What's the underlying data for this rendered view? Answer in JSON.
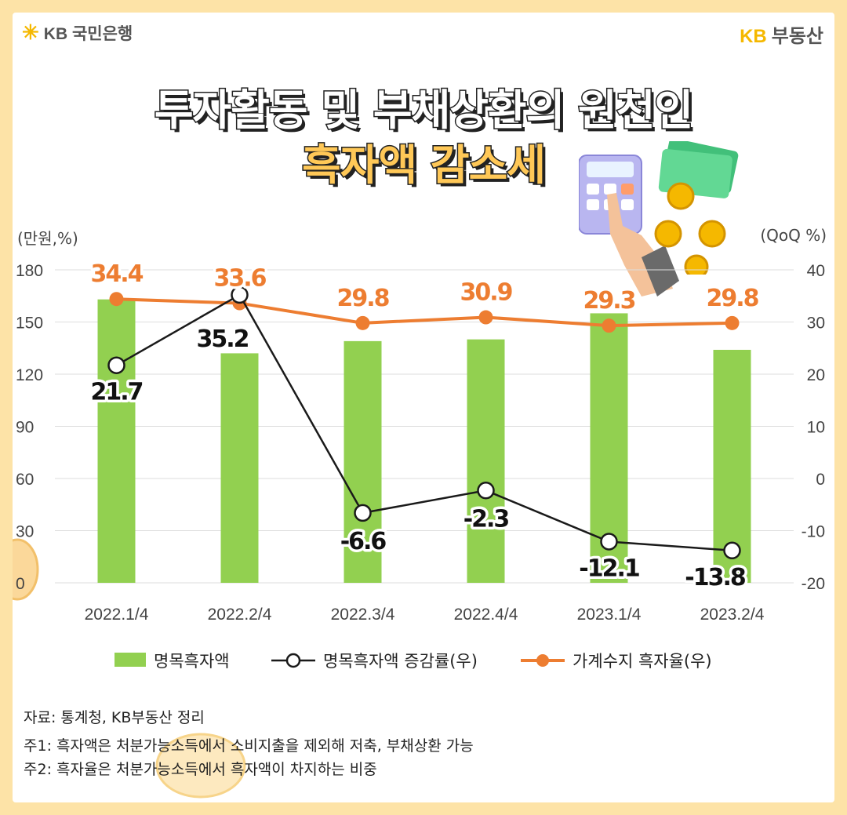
{
  "header": {
    "left_brand": "KB 국민은행",
    "right_brand_kb": "KB",
    "right_brand_name": "부동산"
  },
  "title": {
    "line1": "투자활동 및 부채상환의 원천인",
    "line2": "흑자액 감소세"
  },
  "axis": {
    "left_unit": "(만원,%)",
    "right_unit": "(QoQ %)"
  },
  "legend": {
    "bar": "명목흑자액",
    "black_line": "명목흑자액 증감률(우)",
    "orange_line": "가계수지 흑자율(우)"
  },
  "notes": {
    "source": "자료: 통계청, KB부동산 정리",
    "note1": "주1: 흑자액은 처분가능소득에서 소비지출을 제외해 저축, 부채상환 가능",
    "note2": "주2: 흑자율은 처분가능소득에서 흑자액이 차지하는 비중"
  },
  "colors": {
    "bar": "#92d050",
    "orange_line": "#ed7d31",
    "black_line": "#1a1a1a",
    "accent": "#f5b800"
  },
  "chart_data": {
    "type": "bar",
    "categories": [
      "2022.1/4",
      "2022.2/4",
      "2022.3/4",
      "2022.4/4",
      "2023.1/4",
      "2023.2/4"
    ],
    "ylim_left": [
      0,
      180
    ],
    "yticks_left": [
      0,
      30,
      60,
      90,
      120,
      150,
      180
    ],
    "ylim_right": [
      -20,
      40
    ],
    "yticks_right": [
      -20,
      -10,
      0,
      10,
      20,
      30,
      40
    ],
    "series": [
      {
        "name": "명목흑자액",
        "type": "bar",
        "axis": "left",
        "values": [
          163,
          132,
          139,
          140,
          155,
          134
        ]
      },
      {
        "name": "명목흑자액 증감률(우)",
        "type": "line",
        "axis": "right",
        "values": [
          21.7,
          35.2,
          -6.6,
          -2.3,
          -12.1,
          -13.8
        ],
        "labels": [
          "21.7",
          "35.2",
          "-6.6",
          "-2.3",
          "-12.1",
          "-13.8"
        ]
      },
      {
        "name": "가계수지 흑자율(우)",
        "type": "line",
        "axis": "right",
        "values": [
          34.4,
          33.6,
          29.8,
          30.9,
          29.3,
          29.8
        ],
        "labels": [
          "34.4",
          "33.6",
          "29.8",
          "30.9",
          "29.3",
          "29.8"
        ]
      }
    ],
    "grid": "horizontal",
    "legend_position": "bottom"
  }
}
